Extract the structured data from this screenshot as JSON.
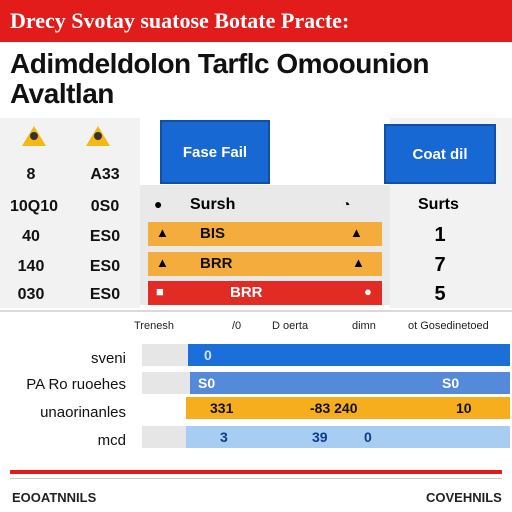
{
  "banner": {
    "text": "Drecy Svotay suatose Botate Practe:"
  },
  "title": {
    "line1": "Adimdeldolon Tarflc Omoounion",
    "line2": "Avaltlan"
  },
  "left_table": {
    "rows": [
      {
        "a": "8",
        "b": "A33"
      },
      {
        "a": "10Q10",
        "b": "0S0"
      },
      {
        "a": "40",
        "b": "ES0"
      },
      {
        "a": "140",
        "b": "ES0"
      },
      {
        "a": "030",
        "b": "ES0"
      }
    ]
  },
  "blue_buttons": {
    "left": "Fase Fail",
    "right": "Coat dil"
  },
  "status_header": {
    "left": "Sursh",
    "right": "Surts"
  },
  "status_bars": [
    {
      "label": "BIS",
      "value": "1",
      "color": "#f4ad3c"
    },
    {
      "label": "BRR",
      "value": "7",
      "color": "#f4ad3c"
    },
    {
      "label": "BRR",
      "value": "5",
      "color": "#e22b22"
    }
  ],
  "legend": {
    "items": [
      "Trenesh",
      "/0",
      "D oerta",
      "dimn",
      "ot Gosedinetoed"
    ]
  },
  "bar_rows": [
    {
      "label": "sveni",
      "texts": [
        "0",
        "",
        ""
      ],
      "color": "#1b6fd8"
    },
    {
      "label": "PA Ro ruoehes",
      "texts": [
        "S0",
        "",
        "S0"
      ],
      "color": "#5589d9"
    },
    {
      "label": "unaorinanles",
      "texts": [
        "331",
        "-83  240",
        "10"
      ],
      "color": "#f6ae1e"
    },
    {
      "label": "mcd",
      "texts": [
        "3",
        "39",
        "0"
      ],
      "color": "#a8cdf3"
    }
  ],
  "footer": {
    "left": "EOOATNNILS",
    "right": "COVEHNILS"
  }
}
